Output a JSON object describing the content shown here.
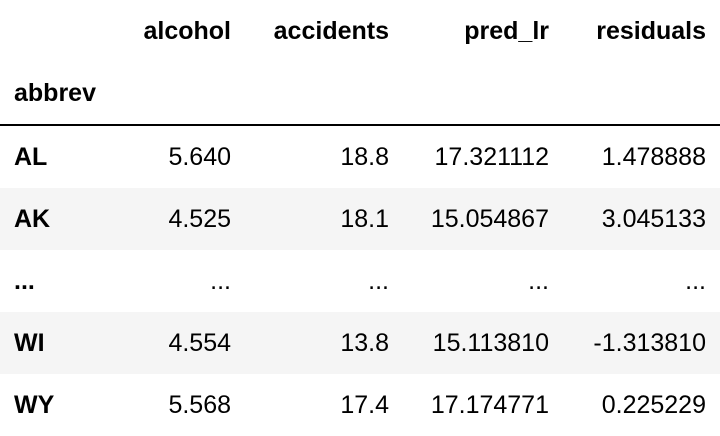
{
  "table": {
    "columns": [
      "alcohol",
      "accidents",
      "pred_lr",
      "residuals"
    ],
    "index_name": "abbrev",
    "rows": [
      {
        "index": "AL",
        "alcohol": "5.640",
        "accidents": "18.8",
        "pred_lr": "17.321112",
        "residuals": "1.478888"
      },
      {
        "index": "AK",
        "alcohol": "4.525",
        "accidents": "18.1",
        "pred_lr": "15.054867",
        "residuals": "3.045133"
      },
      {
        "index": "...",
        "alcohol": "...",
        "accidents": "...",
        "pred_lr": "...",
        "residuals": "..."
      },
      {
        "index": "WI",
        "alcohol": "4.554",
        "accidents": "13.8",
        "pred_lr": "15.113810",
        "residuals": "-1.313810"
      },
      {
        "index": "WY",
        "alcohol": "5.568",
        "accidents": "17.4",
        "pred_lr": "17.174771",
        "residuals": "0.225229"
      }
    ]
  }
}
